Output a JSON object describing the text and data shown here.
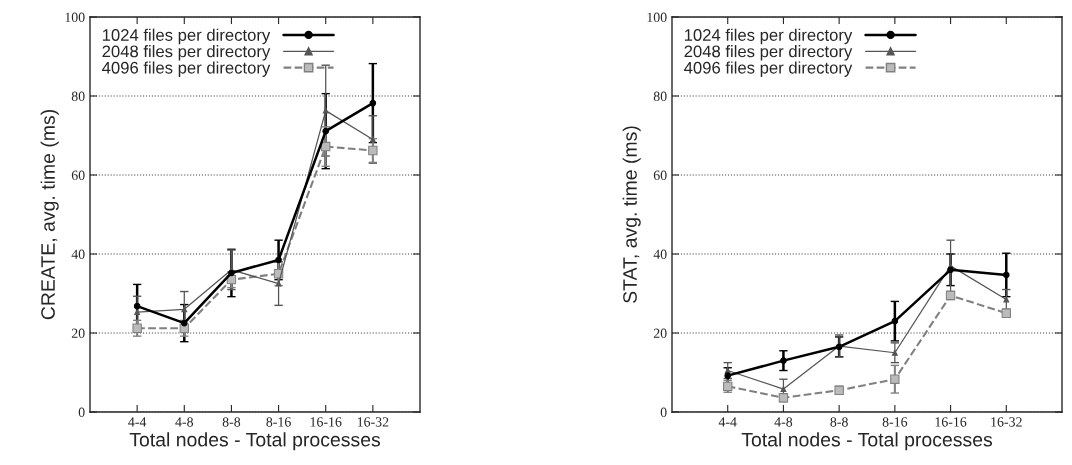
{
  "chart_data": [
    {
      "type": "line",
      "ylabel": "CREATE, avg. time (ms)",
      "xlabel": "Total nodes - Total processes",
      "categories": [
        "4-4",
        "4-8",
        "8-8",
        "8-16",
        "16-16",
        "16-32"
      ],
      "ylim": [
        0,
        100
      ],
      "yticks": [
        0,
        20,
        40,
        60,
        80,
        100
      ],
      "grid": "y",
      "legend": "top left",
      "series": [
        {
          "name": "1024 files per directory",
          "color": "#000000",
          "marker": "circle",
          "line_style": "solid",
          "values": [
            26.8,
            22.5,
            35.2,
            38.5,
            71.1,
            78.2
          ],
          "errors": [
            5.5,
            4.7,
            6,
            5,
            9.5,
            10
          ]
        },
        {
          "name": "2048 files per directory",
          "color": "#555555",
          "marker": "triangle",
          "line_style": "solid",
          "values": [
            25.3,
            26,
            36,
            32.5,
            76.3,
            69
          ],
          "errors": [
            4,
            4.5,
            5,
            5.5,
            11.5,
            6
          ]
        },
        {
          "name": "4096 files per directory",
          "color": "#808080",
          "marker": "square",
          "line_style": "dashed",
          "values": [
            21.2,
            21.2,
            33.5,
            35,
            67.2,
            66.2
          ],
          "errors": [
            2,
            2,
            2,
            3,
            5,
            3
          ]
        }
      ]
    },
    {
      "type": "line",
      "ylabel": "STAT, avg. time (ms)",
      "xlabel": "Total nodes - Total processes",
      "categories": [
        "4-4",
        "4-8",
        "8-8",
        "8-16",
        "16-16",
        "16-32"
      ],
      "ylim": [
        0,
        100
      ],
      "yticks": [
        0,
        20,
        40,
        60,
        80,
        100
      ],
      "grid": "y",
      "legend": "top left",
      "series": [
        {
          "name": "1024 files per directory",
          "color": "#000000",
          "marker": "circle",
          "line_style": "solid",
          "values": [
            9.2,
            13,
            16.5,
            23,
            36,
            34.7
          ],
          "errors": [
            2,
            2.5,
            2.5,
            5,
            4,
            5.5
          ]
        },
        {
          "name": "2048 files per directory",
          "color": "#555555",
          "marker": "triangle",
          "line_style": "solid",
          "values": [
            10.5,
            5.8,
            16.7,
            15,
            37,
            28.5
          ],
          "errors": [
            2,
            2.5,
            2.8,
            2.5,
            6.5,
            2.5
          ]
        },
        {
          "name": "4096 files per directory",
          "color": "#808080",
          "marker": "square",
          "line_style": "dashed",
          "values": [
            6.5,
            3.6,
            5.5,
            8.3,
            29.5,
            25
          ],
          "errors": [
            1.5,
            1,
            1,
            3.5,
            1,
            1
          ]
        }
      ]
    }
  ]
}
